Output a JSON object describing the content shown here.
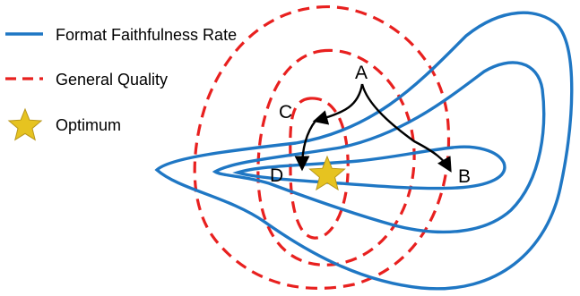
{
  "legend": {
    "items": [
      {
        "label": "Format Faithfulness Rate",
        "style": "solid",
        "color": "#1f77c4"
      },
      {
        "label": "General Quality",
        "style": "dashed",
        "color": "#e8201f"
      },
      {
        "label": "Optimum",
        "style": "star",
        "color": "#e6c320"
      }
    ]
  },
  "points": {
    "a": "A",
    "b": "B",
    "c": "C",
    "d": "D"
  },
  "colors": {
    "format_contour": "#1f77c4",
    "quality_contour": "#e8201f",
    "optimum_star": "#e6c320",
    "star_outline": "#b8961a",
    "arrow": "#000000"
  }
}
